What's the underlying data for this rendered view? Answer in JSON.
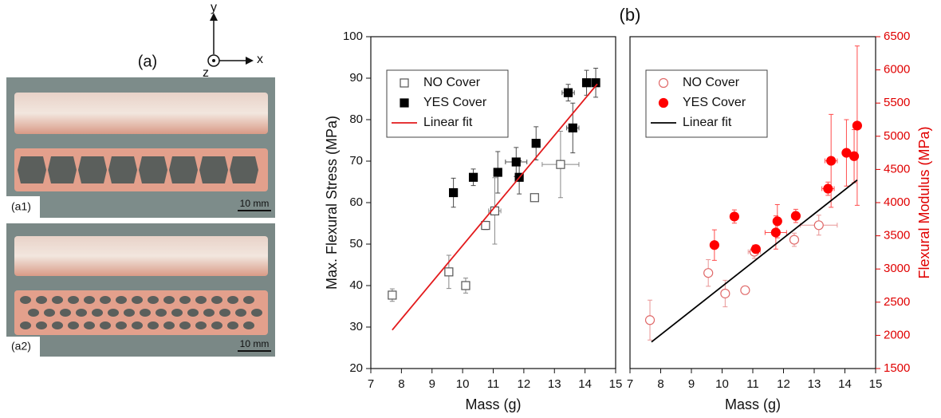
{
  "panel_a": {
    "label": "(a)",
    "top_label": "(a1)",
    "bottom_label": "(a2)",
    "scale_bar": "10 mm",
    "axis_x": "x",
    "axis_y": "y",
    "axis_z": "z"
  },
  "panel_b_label": "(b)",
  "chart_data": [
    {
      "type": "scatter",
      "xlabel": "Mass (g)",
      "ylabel": "Max. Flexural Stress (MPa)",
      "xlim": [
        7,
        15
      ],
      "xticks": [
        7,
        8,
        9,
        10,
        11,
        12,
        13,
        14,
        15
      ],
      "ylim": [
        20,
        100
      ],
      "yticks": [
        20,
        30,
        40,
        50,
        60,
        70,
        80,
        90,
        100
      ],
      "legend": "upper left",
      "series": [
        {
          "name": "NO Cover",
          "color": "#555555",
          "marker": "square",
          "filled": false,
          "x": [
            7.7,
            9.55,
            10.1,
            10.75,
            11.05,
            12.35,
            13.2
          ],
          "values": [
            37.7,
            43.3,
            40,
            54.5,
            58,
            61.2,
            69.2
          ],
          "xerr": [
            0.05,
            0.1,
            0.1,
            0.1,
            0.2,
            0.1,
            0.6
          ],
          "yerr": [
            1.5,
            4,
            1.8,
            1,
            8,
            0.8,
            8
          ]
        },
        {
          "name": "YES Cover",
          "color": "#000000",
          "marker": "square",
          "filled": true,
          "x": [
            9.7,
            10.35,
            11.15,
            11.75,
            11.85,
            12.4,
            13.45,
            13.6,
            14.05,
            14.35
          ],
          "values": [
            62.4,
            66.1,
            67.3,
            69.8,
            66.1,
            74.3,
            86.5,
            78,
            88.9,
            88.9
          ],
          "xerr": [
            0.05,
            0.1,
            0.1,
            0.35,
            0.1,
            0.05,
            0.2,
            0.2,
            0.1,
            0.1
          ],
          "yerr": [
            3.5,
            2,
            5,
            3.5,
            4,
            4,
            2,
            6,
            3,
            3.5
          ]
        },
        {
          "name": "Linear fit",
          "color": "#e31a1c",
          "marker": "line",
          "x": [
            7.7,
            14.4
          ],
          "values": [
            29.3,
            88.6
          ]
        }
      ]
    },
    {
      "type": "scatter",
      "xlabel": "Mass (g)",
      "y2label": "Flexural Modulus (MPa)",
      "y2color": "#e00000",
      "xlim": [
        7,
        15
      ],
      "xticks": [
        7,
        8,
        9,
        10,
        11,
        12,
        13,
        14,
        15
      ],
      "y2lim": [
        1500,
        6500
      ],
      "y2ticks": [
        1500,
        2000,
        2500,
        3000,
        3500,
        4000,
        4500,
        5000,
        5500,
        6000,
        6500
      ],
      "legend": "upper left",
      "series": [
        {
          "name": "NO Cover",
          "color": "#e06a6a",
          "marker": "circle",
          "filled": false,
          "axis": "y2",
          "x": [
            7.65,
            9.55,
            10.1,
            10.75,
            11.05,
            12.35,
            13.15
          ],
          "values": [
            2230,
            2940,
            2630,
            2680,
            3260,
            3440,
            3660
          ],
          "xerr": [
            0.05,
            0.1,
            0.1,
            0.1,
            0.2,
            0.1,
            0.6
          ],
          "yerr": [
            300,
            200,
            200,
            60,
            100,
            100,
            150
          ]
        },
        {
          "name": "YES Cover",
          "color": "#ff0000",
          "marker": "circle",
          "filled": true,
          "axis": "y2",
          "x": [
            9.75,
            10.4,
            11.1,
            11.8,
            11.75,
            12.4,
            13.45,
            13.55,
            14.05,
            14.3,
            14.4
          ],
          "values": [
            3360,
            3790,
            3300,
            3720,
            3550,
            3800,
            4210,
            4630,
            4750,
            4700,
            5160
          ],
          "xerr": [
            0.05,
            0.1,
            0.1,
            0.1,
            0.35,
            0.05,
            0.2,
            0.2,
            0.1,
            0.1,
            0.1
          ],
          "yerr": [
            230,
            100,
            60,
            250,
            250,
            100,
            100,
            700,
            500,
            400,
            1200
          ]
        },
        {
          "name": "Linear fit",
          "color": "#000000",
          "marker": "line",
          "axis": "y2",
          "x": [
            7.7,
            14.4
          ],
          "values": [
            1900,
            4340
          ]
        }
      ]
    }
  ]
}
